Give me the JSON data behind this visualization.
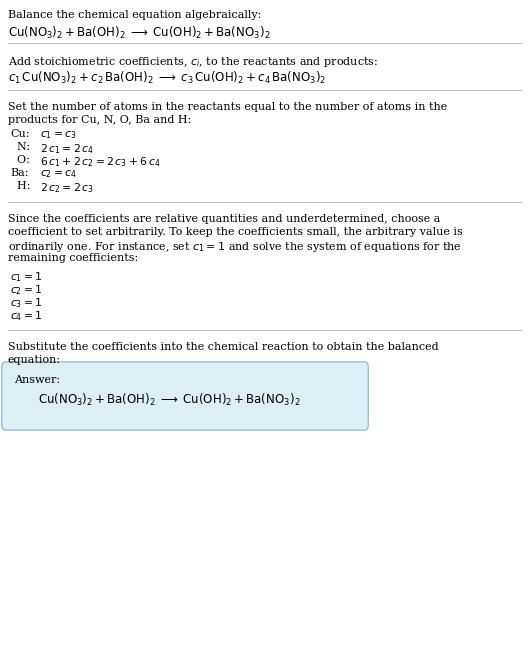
{
  "bg_color": "#ffffff",
  "text_color": "#000000",
  "line_color": "#bbbbbb",
  "answer_box_color": "#ddeef5",
  "answer_box_edge": "#88bbd0",
  "fig_width": 5.29,
  "fig_height": 6.47,
  "dpi": 100,
  "section1": {
    "header": "Balance the chemical equation algebraically:",
    "equation": "$\\mathrm{Cu(NO_3)_2 + Ba(OH)_2 \\;\\longrightarrow\\; Cu(OH)_2 + Ba(NO_3)_2}$"
  },
  "section2": {
    "header": "Add stoichiometric coefficients, $c_i$, to the reactants and products:",
    "equation": "$c_1\\,\\mathrm{Cu(NO_3)_2} + c_2\\,\\mathrm{Ba(OH)_2} \\;\\longrightarrow\\; c_3\\,\\mathrm{Cu(OH)_2} + c_4\\,\\mathrm{Ba(NO_3)_2}$"
  },
  "section3": {
    "header_line1": "Set the number of atoms in the reactants equal to the number of atoms in the",
    "header_line2": "products for Cu, N, O, Ba and H:",
    "equations": [
      [
        "Cu:",
        "$c_1 = c_3$"
      ],
      [
        "  N:",
        "$2\\,c_1 = 2\\,c_4$"
      ],
      [
        "  O:",
        "$6\\,c_1 + 2\\,c_2 = 2\\,c_3 + 6\\,c_4$"
      ],
      [
        "Ba:",
        "$c_2 = c_4$"
      ],
      [
        "  H:",
        "$2\\,c_2 = 2\\,c_3$"
      ]
    ]
  },
  "section4": {
    "text_lines": [
      "Since the coefficients are relative quantities and underdetermined, choose a",
      "coefficient to set arbitrarily. To keep the coefficients small, the arbitrary value is",
      "ordinarily one. For instance, set $c_1 = 1$ and solve the system of equations for the",
      "remaining coefficients:"
    ],
    "solutions": [
      "$c_1 = 1$",
      "$c_2 = 1$",
      "$c_3 = 1$",
      "$c_4 = 1$"
    ]
  },
  "section5": {
    "header_line1": "Substitute the coefficients into the chemical reaction to obtain the balanced",
    "header_line2": "equation:",
    "answer_label": "Answer:",
    "answer_eq": "$\\mathrm{Cu(NO_3)_2 + Ba(OH)_2 \\;\\longrightarrow\\; Cu(OH)_2 + Ba(NO_3)_2}$"
  }
}
